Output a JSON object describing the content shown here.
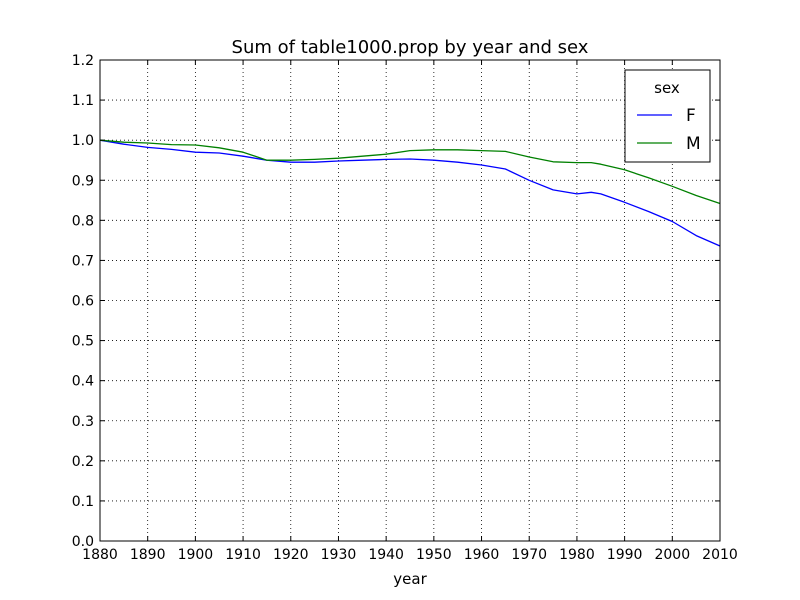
{
  "chart_data": {
    "type": "line",
    "title": "Sum of table1000.prop by year and sex",
    "xlabel": "year",
    "ylabel": "",
    "xlim": [
      1880,
      2010
    ],
    "ylim": [
      0.0,
      1.2
    ],
    "grid": true,
    "legend": {
      "title": "sex",
      "placement": "top-right"
    },
    "x_ticks": [
      "1880",
      "1890",
      "1900",
      "1910",
      "1920",
      "1930",
      "1940",
      "1950",
      "1960",
      "1970",
      "1980",
      "1990",
      "2000",
      "2010"
    ],
    "y_ticks": [
      "0.0",
      "0.1",
      "0.2",
      "0.3",
      "0.4",
      "0.5",
      "0.6",
      "0.7",
      "0.8",
      "0.9",
      "1.0",
      "1.1",
      "1.2"
    ],
    "x": [
      1880,
      1885,
      1890,
      1895,
      1900,
      1905,
      1910,
      1915,
      1920,
      1925,
      1930,
      1935,
      1940,
      1945,
      1950,
      1955,
      1960,
      1965,
      1970,
      1975,
      1980,
      1983,
      1985,
      1990,
      1995,
      2000,
      2005,
      2010
    ],
    "series": [
      {
        "name": "F",
        "color": "#0000ff",
        "values": [
          1.0,
          0.99,
          0.982,
          0.977,
          0.97,
          0.968,
          0.96,
          0.95,
          0.945,
          0.945,
          0.948,
          0.95,
          0.952,
          0.953,
          0.95,
          0.945,
          0.938,
          0.928,
          0.9,
          0.876,
          0.866,
          0.87,
          0.866,
          0.845,
          0.822,
          0.797,
          0.762,
          0.736
        ]
      },
      {
        "name": "M",
        "color": "#008000",
        "values": [
          1.0,
          0.995,
          0.993,
          0.989,
          0.988,
          0.981,
          0.97,
          0.95,
          0.95,
          0.952,
          0.955,
          0.96,
          0.965,
          0.974,
          0.976,
          0.976,
          0.974,
          0.972,
          0.958,
          0.946,
          0.944,
          0.944,
          0.94,
          0.926,
          0.906,
          0.885,
          0.862,
          0.842
        ]
      }
    ]
  }
}
